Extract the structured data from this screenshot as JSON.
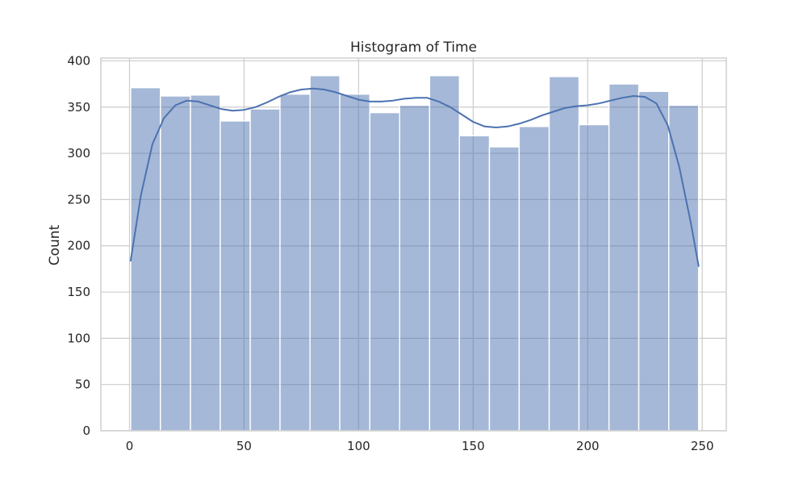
{
  "chart_data": {
    "type": "bar",
    "subtype": "histogram-with-kde",
    "title": "Histogram of Time",
    "xlabel": "",
    "ylabel": "Count",
    "xlim": [
      -12.5,
      260.5
    ],
    "ylim": [
      0,
      403
    ],
    "xticks": [
      0,
      50,
      100,
      150,
      200,
      250
    ],
    "yticks": [
      0,
      50,
      100,
      150,
      200,
      250,
      300,
      350,
      400
    ],
    "grid": true,
    "legend": "none",
    "bin_edges": [
      0.5,
      13.5,
      26.6,
      39.6,
      52.7,
      65.7,
      78.8,
      91.8,
      104.9,
      117.9,
      131.0,
      144.0,
      157.1,
      170.1,
      183.2,
      196.2,
      209.3,
      222.3,
      235.4,
      248.4
    ],
    "counts": [
      371,
      362,
      363,
      335,
      348,
      364,
      384,
      364,
      344,
      352,
      384,
      319,
      307,
      329,
      383,
      331,
      375,
      367,
      352
    ],
    "kde": {
      "x": [
        0.5,
        5,
        10,
        15,
        20,
        25,
        30,
        35,
        40,
        45,
        50,
        55,
        60,
        65,
        70,
        75,
        80,
        85,
        90,
        95,
        100,
        105,
        110,
        115,
        120,
        125,
        130,
        135,
        140,
        145,
        150,
        155,
        160,
        165,
        170,
        175,
        180,
        185,
        190,
        195,
        200,
        205,
        210,
        215,
        220,
        225,
        230,
        235,
        240,
        245,
        248.4
      ],
      "y": [
        184,
        255,
        310,
        338,
        352,
        357,
        356,
        352,
        348,
        346,
        347,
        350,
        355,
        361,
        366,
        369,
        370,
        369,
        366,
        362,
        358,
        356,
        356,
        357,
        359,
        360,
        360,
        356,
        350,
        342,
        334,
        329,
        328,
        329,
        332,
        336,
        341,
        345,
        349,
        351,
        352,
        354,
        357,
        360,
        362,
        361,
        354,
        330,
        285,
        225,
        178
      ]
    },
    "colors": {
      "bar_fill": "#a4b6d8",
      "bar_stroke": "#ffffff",
      "kde_line": "#4c72b0",
      "grid": "#cccccc",
      "frame": "#cccccc"
    }
  }
}
